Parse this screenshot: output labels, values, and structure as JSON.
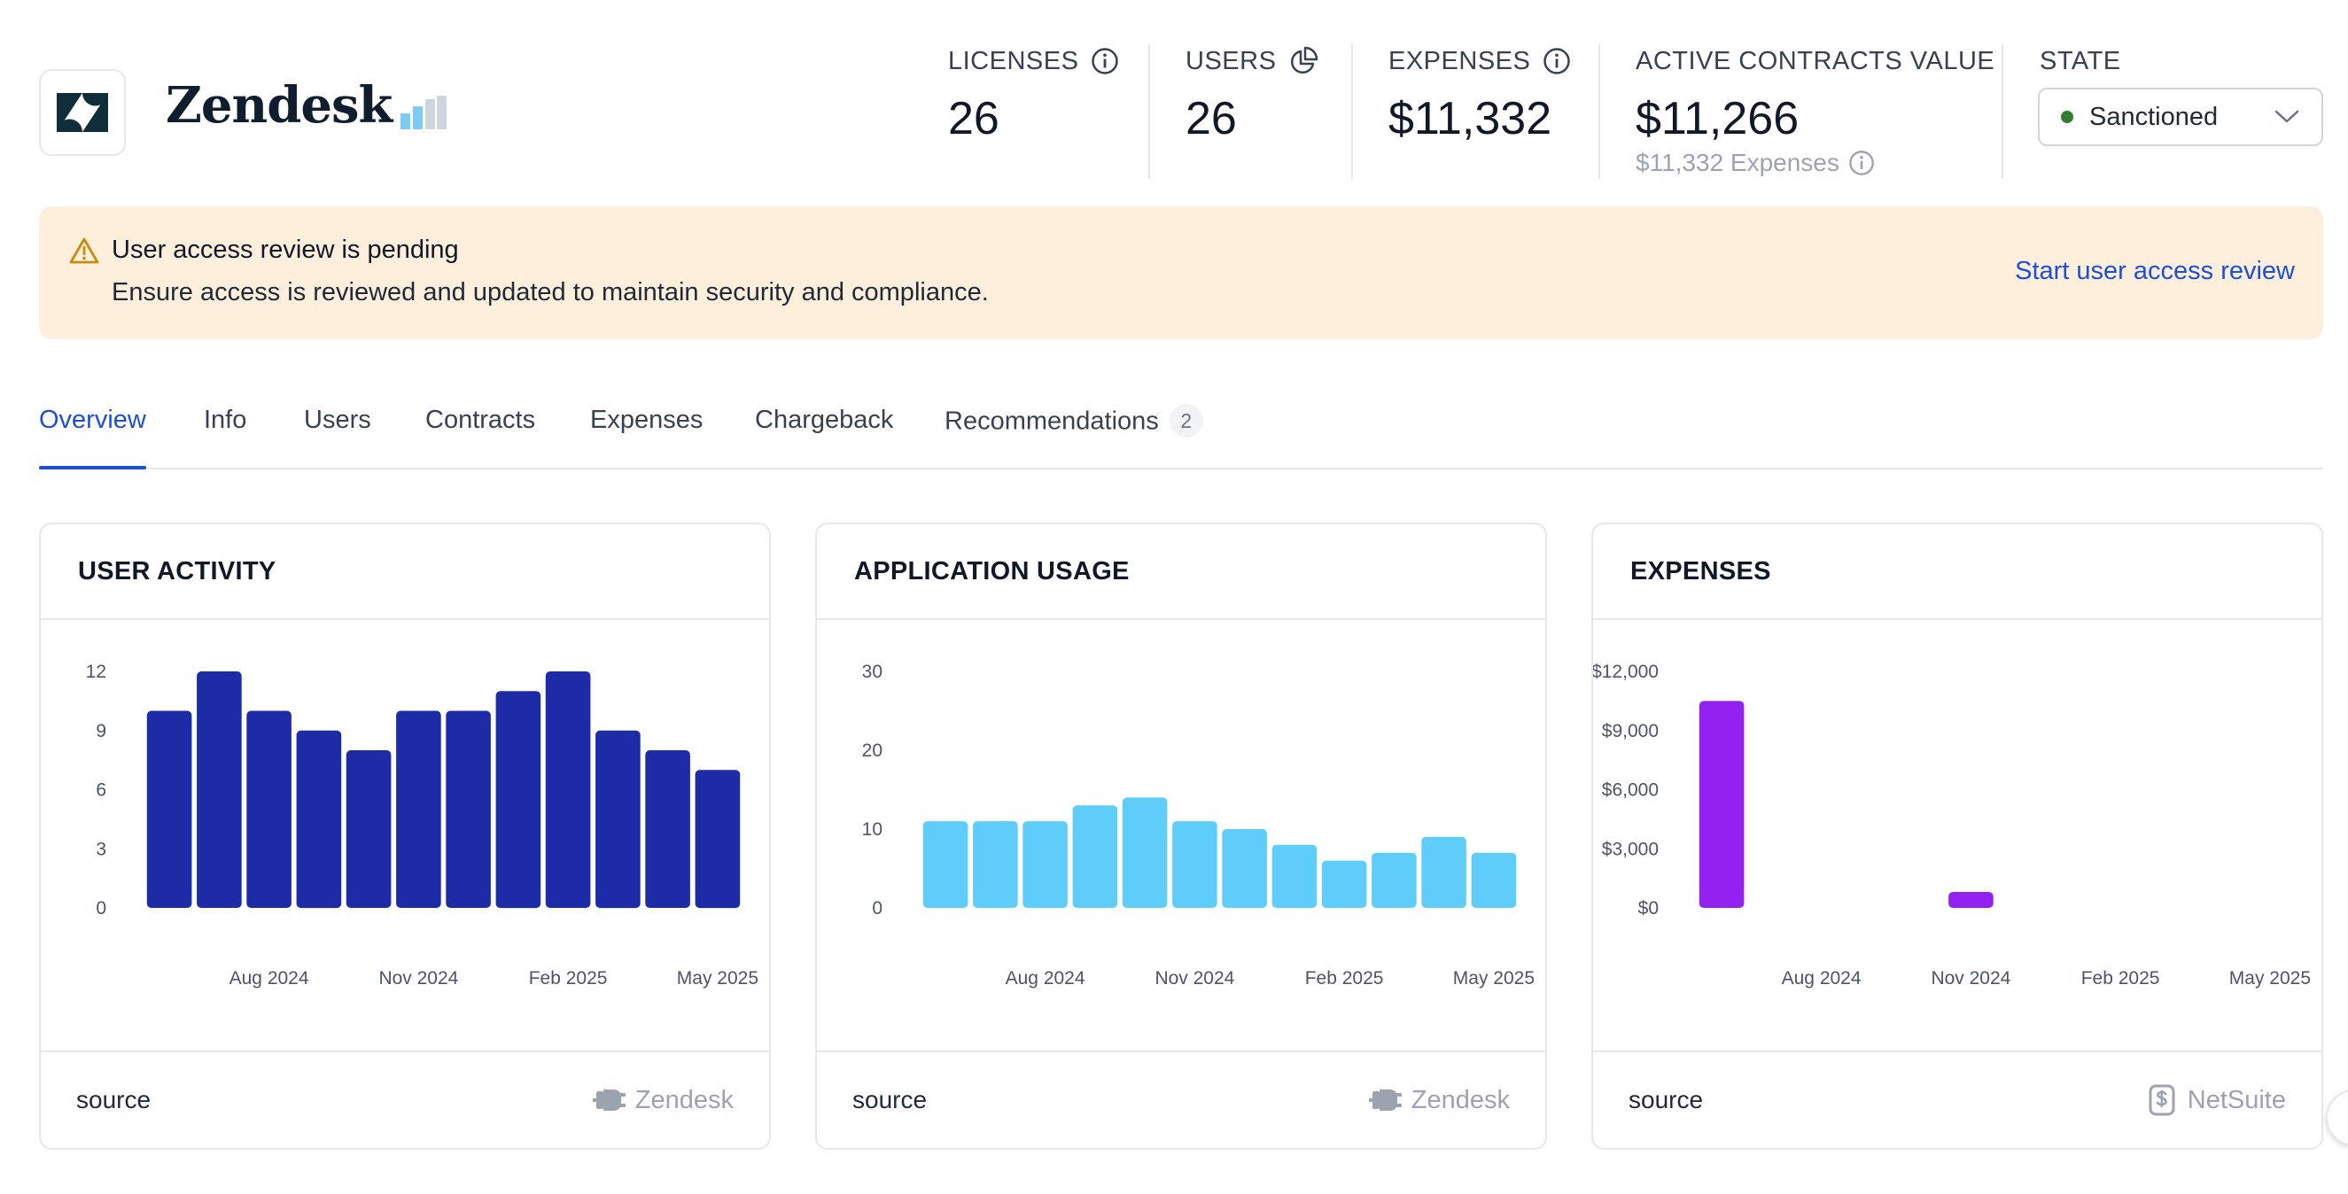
{
  "app": {
    "name": "Zendesk",
    "logo_icon": "zendesk-logo-icon",
    "usage_indicator_icon": "signal-bars-icon",
    "usage_level": 0.6
  },
  "stats": {
    "licenses": {
      "label": "LICENSES",
      "value": "26"
    },
    "users": {
      "label": "USERS",
      "value": "26"
    },
    "expenses": {
      "label": "EXPENSES",
      "value": "$11,332"
    },
    "active_contracts": {
      "label": "ACTIVE CONTRACTS VALUE",
      "value": "$11,266",
      "sub": "$11,332 Expenses"
    },
    "state": {
      "label": "STATE",
      "value": "Sanctioned",
      "status_color": "#2f7d32"
    }
  },
  "alert": {
    "title": "User access review is pending",
    "text": "Ensure access is reviewed and updated to maintain security and compliance.",
    "action": "Start user access review",
    "background": "#fdefdc"
  },
  "tabs": [
    {
      "label": "Overview",
      "active": true
    },
    {
      "label": "Info"
    },
    {
      "label": "Users"
    },
    {
      "label": "Contracts"
    },
    {
      "label": "Expenses"
    },
    {
      "label": "Chargeback"
    },
    {
      "label": "Recommendations",
      "badge": "2"
    }
  ],
  "cards": [
    {
      "title": "USER ACTIVITY",
      "source_label": "source",
      "source_name": "Zendesk",
      "source_icon": "plug-icon"
    },
    {
      "title": "APPLICATION USAGE",
      "source_label": "source",
      "source_name": "Zendesk",
      "source_icon": "plug-icon"
    },
    {
      "title": "EXPENSES",
      "source_label": "source",
      "source_name": "NetSuite",
      "source_icon": "dollar-file-icon"
    }
  ],
  "chart_data": [
    {
      "type": "bar",
      "title": "USER ACTIVITY",
      "color": "#1e2ba6",
      "x": [
        "Jun 2024",
        "Jul 2024",
        "Aug 2024",
        "Sep 2024",
        "Oct 2024",
        "Nov 2024",
        "Dec 2024",
        "Jan 2025",
        "Feb 2025",
        "Mar 2025",
        "Apr 2025",
        "May 2025"
      ],
      "values": [
        10,
        12,
        10,
        9,
        8,
        10,
        10,
        11,
        12,
        9,
        8,
        7
      ],
      "x_tick_labels": [
        "Aug 2024",
        "Nov 2024",
        "Feb 2025",
        "May 2025"
      ],
      "y_ticks": [
        "0",
        "3",
        "6",
        "9",
        "12"
      ],
      "ylim": [
        0,
        12
      ],
      "grid": false
    },
    {
      "type": "bar",
      "title": "APPLICATION USAGE",
      "color": "#5fcdf9",
      "x": [
        "Jun 2024",
        "Jul 2024",
        "Aug 2024",
        "Sep 2024",
        "Oct 2024",
        "Nov 2024",
        "Dec 2024",
        "Jan 2025",
        "Feb 2025",
        "Mar 2025",
        "Apr 2025",
        "May 2025"
      ],
      "values": [
        11,
        11,
        11,
        13,
        14,
        11,
        10,
        8,
        6,
        7,
        9,
        7
      ],
      "x_tick_labels": [
        "Aug 2024",
        "Nov 2024",
        "Feb 2025",
        "May 2025"
      ],
      "y_ticks": [
        "0",
        "10",
        "20",
        "30"
      ],
      "ylim": [
        0,
        30
      ],
      "grid": false
    },
    {
      "type": "bar",
      "title": "EXPENSES",
      "color": "#9321f0",
      "x": [
        "Jun 2024",
        "Jul 2024",
        "Aug 2024",
        "Sep 2024",
        "Oct 2024",
        "Nov 2024",
        "Dec 2024",
        "Jan 2025",
        "Feb 2025",
        "Mar 2025",
        "Apr 2025",
        "May 2025"
      ],
      "values": [
        10500,
        0,
        0,
        0,
        0,
        800,
        0,
        0,
        0,
        0,
        0,
        0
      ],
      "x_tick_labels": [
        "Aug 2024",
        "Nov 2024",
        "Feb 2025",
        "May 2025"
      ],
      "y_ticks": [
        "$0",
        "$3,000",
        "$6,000",
        "$9,000",
        "$12,000"
      ],
      "ylim": [
        0,
        12000
      ],
      "grid": false
    }
  ]
}
